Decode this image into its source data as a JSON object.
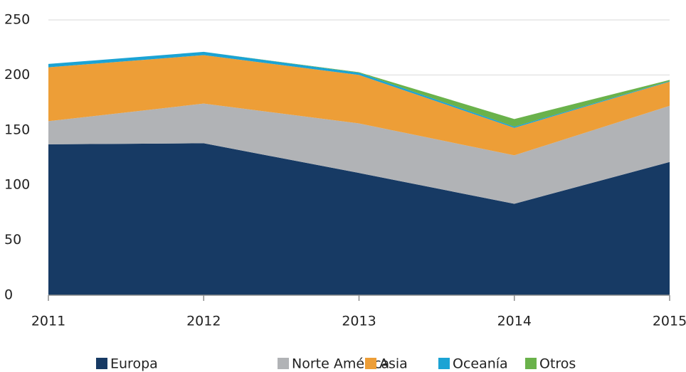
{
  "chart_data": {
    "type": "area",
    "stacked": true,
    "categories": [
      "2011",
      "2012",
      "2013",
      "2014",
      "2015"
    ],
    "series": [
      {
        "name": "Europa",
        "color": "#173a64",
        "values": [
          137,
          138,
          111,
          83,
          121
        ]
      },
      {
        "name": "Norte América",
        "color": "#b1b3b6",
        "values": [
          21,
          36,
          45,
          44,
          51
        ]
      },
      {
        "name": "Asia",
        "color": "#ed9e37",
        "values": [
          49,
          44,
          44,
          25,
          22
        ]
      },
      {
        "name": "Oceanía",
        "color": "#1ba3d4",
        "values": [
          3,
          3,
          2,
          1,
          0.5
        ]
      },
      {
        "name": "Otros",
        "color": "#6ab24b",
        "values": [
          0,
          0,
          0.5,
          7,
          1
        ]
      }
    ],
    "ylim": [
      0,
      250
    ],
    "yticks": [
      0,
      50,
      100,
      150,
      200,
      250
    ],
    "grid": true,
    "legend": "bottom"
  }
}
